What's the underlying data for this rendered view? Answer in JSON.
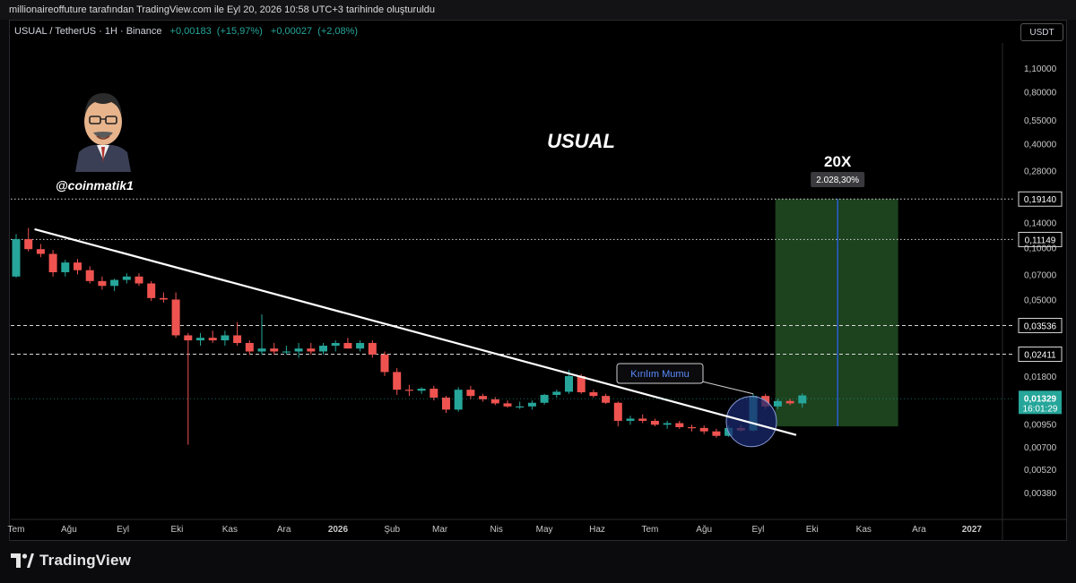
{
  "header": {
    "attribution": "millionaireoffuture tarafından TradingView.com ile Eyl 20, 2026 10:58 UTC+3 tarihinde oluşturuldu"
  },
  "symbol_bar": {
    "title": "USUAL / TetherUS · 1H · Binance",
    "change_abs": "+0,00183",
    "change_pct": "(+15,97%)",
    "change2_abs": "+0,00027",
    "change2_pct": "(+2,08%)"
  },
  "currency_button": "USDT",
  "author": {
    "handle": "@coinmatik1"
  },
  "branding": {
    "logo_text": "TradingView"
  },
  "colors": {
    "up": "#26a69a",
    "down": "#ef5350",
    "target_box": "#1e4620",
    "trendline": "#ffffff",
    "circle": "#1a2a6e",
    "label_blue": "#2962ff"
  },
  "chart_data": {
    "type": "candlestick",
    "title": "USUAL",
    "y_scale": "log",
    "ylim": [
      0.0033,
      1.25
    ],
    "y_ticks": [
      "1,10000",
      "0,80000",
      "0,55000",
      "0,40000",
      "0,28000",
      "0,14000",
      "0,10000",
      "0,07000",
      "0,05000",
      "0,01800",
      "0,00950",
      "0,00700",
      "0,00520",
      "0,00380"
    ],
    "y_tick_values": [
      1.1,
      0.8,
      0.55,
      0.4,
      0.28,
      0.14,
      0.1,
      0.07,
      0.05,
      0.018,
      0.0095,
      0.007,
      0.0052,
      0.0038
    ],
    "x_ticks": [
      "Tem",
      "Ağu",
      "Eyl",
      "Eki",
      "Kas",
      "Ara",
      "2026",
      "Şub",
      "Mar",
      "Nis",
      "May",
      "Haz",
      "Tem",
      "Ağu",
      "Eyl",
      "Eki",
      "Kas",
      "Ara",
      "2027"
    ],
    "x_tick_weeks": [
      0,
      4.3,
      8.7,
      13.1,
      17.4,
      21.8,
      26.2,
      30.6,
      34.5,
      39.1,
      43.0,
      47.3,
      51.6,
      56.0,
      60.4,
      64.8,
      69.0,
      73.5,
      77.8
    ],
    "price_levels": [
      {
        "label": "0,19140",
        "value": 0.1914,
        "style": "dotted"
      },
      {
        "label": "0,11149",
        "value": 0.11149,
        "style": "dotted"
      },
      {
        "label": "0,03536",
        "value": 0.03536,
        "style": "dashed"
      },
      {
        "label": "0,02411",
        "value": 0.02411,
        "style": "dashed"
      }
    ],
    "current_price": {
      "label": "0,01329",
      "timer": "16:01:29",
      "value": 0.01329
    },
    "annotations": {
      "multiplier": "20X",
      "target_pct": "2.028,30%",
      "breakout_label": "Kırılım Mumu"
    },
    "target_box": {
      "x_start_week": 61.8,
      "x_end_week": 71.8,
      "y_low": 0.0092,
      "y_high": 0.1914
    },
    "trendline": {
      "start": {
        "week": 1.5,
        "value": 0.128
      },
      "end": {
        "week": 63.5,
        "value": 0.0082
      }
    },
    "candles": [
      {
        "o": 0.068,
        "h": 0.12,
        "l": 0.067,
        "c": 0.112
      },
      {
        "o": 0.112,
        "h": 0.13,
        "l": 0.095,
        "c": 0.098
      },
      {
        "o": 0.098,
        "h": 0.105,
        "l": 0.088,
        "c": 0.092
      },
      {
        "o": 0.092,
        "h": 0.097,
        "l": 0.068,
        "c": 0.072
      },
      {
        "o": 0.072,
        "h": 0.085,
        "l": 0.068,
        "c": 0.082
      },
      {
        "o": 0.082,
        "h": 0.086,
        "l": 0.07,
        "c": 0.074
      },
      {
        "o": 0.074,
        "h": 0.078,
        "l": 0.062,
        "c": 0.064
      },
      {
        "o": 0.064,
        "h": 0.068,
        "l": 0.057,
        "c": 0.06
      },
      {
        "o": 0.06,
        "h": 0.066,
        "l": 0.056,
        "c": 0.065
      },
      {
        "o": 0.065,
        "h": 0.071,
        "l": 0.062,
        "c": 0.068
      },
      {
        "o": 0.068,
        "h": 0.071,
        "l": 0.06,
        "c": 0.062
      },
      {
        "o": 0.062,
        "h": 0.064,
        "l": 0.049,
        "c": 0.051
      },
      {
        "o": 0.051,
        "h": 0.055,
        "l": 0.048,
        "c": 0.05
      },
      {
        "o": 0.05,
        "h": 0.055,
        "l": 0.03,
        "c": 0.031
      },
      {
        "o": 0.031,
        "h": 0.032,
        "l": 0.0072,
        "c": 0.029
      },
      {
        "o": 0.029,
        "h": 0.032,
        "l": 0.027,
        "c": 0.03
      },
      {
        "o": 0.03,
        "h": 0.033,
        "l": 0.028,
        "c": 0.029
      },
      {
        "o": 0.029,
        "h": 0.033,
        "l": 0.027,
        "c": 0.031
      },
      {
        "o": 0.031,
        "h": 0.037,
        "l": 0.027,
        "c": 0.028
      },
      {
        "o": 0.028,
        "h": 0.029,
        "l": 0.024,
        "c": 0.025
      },
      {
        "o": 0.025,
        "h": 0.041,
        "l": 0.024,
        "c": 0.026
      },
      {
        "o": 0.026,
        "h": 0.028,
        "l": 0.024,
        "c": 0.025
      },
      {
        "o": 0.025,
        "h": 0.027,
        "l": 0.024,
        "c": 0.025
      },
      {
        "o": 0.025,
        "h": 0.028,
        "l": 0.023,
        "c": 0.026
      },
      {
        "o": 0.026,
        "h": 0.028,
        "l": 0.024,
        "c": 0.025
      },
      {
        "o": 0.025,
        "h": 0.028,
        "l": 0.024,
        "c": 0.027
      },
      {
        "o": 0.027,
        "h": 0.029,
        "l": 0.025,
        "c": 0.028
      },
      {
        "o": 0.028,
        "h": 0.03,
        "l": 0.026,
        "c": 0.026
      },
      {
        "o": 0.026,
        "h": 0.029,
        "l": 0.025,
        "c": 0.028
      },
      {
        "o": 0.028,
        "h": 0.029,
        "l": 0.023,
        "c": 0.024
      },
      {
        "o": 0.024,
        "h": 0.025,
        "l": 0.018,
        "c": 0.019
      },
      {
        "o": 0.019,
        "h": 0.02,
        "l": 0.014,
        "c": 0.015
      },
      {
        "o": 0.015,
        "h": 0.016,
        "l": 0.0138,
        "c": 0.0148
      },
      {
        "o": 0.0148,
        "h": 0.0155,
        "l": 0.0142,
        "c": 0.0152
      },
      {
        "o": 0.0152,
        "h": 0.0158,
        "l": 0.013,
        "c": 0.0135
      },
      {
        "o": 0.0135,
        "h": 0.0138,
        "l": 0.011,
        "c": 0.0115
      },
      {
        "o": 0.0115,
        "h": 0.0155,
        "l": 0.0112,
        "c": 0.015
      },
      {
        "o": 0.015,
        "h": 0.0158,
        "l": 0.0132,
        "c": 0.0138
      },
      {
        "o": 0.0138,
        "h": 0.0142,
        "l": 0.0128,
        "c": 0.0132
      },
      {
        "o": 0.0132,
        "h": 0.0136,
        "l": 0.0122,
        "c": 0.0125
      },
      {
        "o": 0.0125,
        "h": 0.013,
        "l": 0.0118,
        "c": 0.012
      },
      {
        "o": 0.012,
        "h": 0.0128,
        "l": 0.0116,
        "c": 0.012
      },
      {
        "o": 0.012,
        "h": 0.013,
        "l": 0.0115,
        "c": 0.0126
      },
      {
        "o": 0.0126,
        "h": 0.0142,
        "l": 0.0123,
        "c": 0.014
      },
      {
        "o": 0.014,
        "h": 0.015,
        "l": 0.0135,
        "c": 0.0146
      },
      {
        "o": 0.0146,
        "h": 0.0195,
        "l": 0.0142,
        "c": 0.018
      },
      {
        "o": 0.018,
        "h": 0.0185,
        "l": 0.0142,
        "c": 0.0145
      },
      {
        "o": 0.0145,
        "h": 0.015,
        "l": 0.0135,
        "c": 0.0138
      },
      {
        "o": 0.0138,
        "h": 0.0142,
        "l": 0.0124,
        "c": 0.0126
      },
      {
        "o": 0.0126,
        "h": 0.0128,
        "l": 0.0092,
        "c": 0.0099
      },
      {
        "o": 0.0099,
        "h": 0.0106,
        "l": 0.0094,
        "c": 0.0102
      },
      {
        "o": 0.0102,
        "h": 0.0108,
        "l": 0.0096,
        "c": 0.0099
      },
      {
        "o": 0.0099,
        "h": 0.0102,
        "l": 0.0092,
        "c": 0.0094
      },
      {
        "o": 0.0094,
        "h": 0.0099,
        "l": 0.0089,
        "c": 0.0096
      },
      {
        "o": 0.0096,
        "h": 0.0099,
        "l": 0.0089,
        "c": 0.0091
      },
      {
        "o": 0.0091,
        "h": 0.0094,
        "l": 0.0086,
        "c": 0.009
      },
      {
        "o": 0.009,
        "h": 0.0093,
        "l": 0.0083,
        "c": 0.0086
      },
      {
        "o": 0.0086,
        "h": 0.0089,
        "l": 0.0079,
        "c": 0.0081
      },
      {
        "o": 0.0081,
        "h": 0.0093,
        "l": 0.008,
        "c": 0.009
      },
      {
        "o": 0.009,
        "h": 0.0094,
        "l": 0.0086,
        "c": 0.0087
      },
      {
        "o": 0.0087,
        "h": 0.0142,
        "l": 0.0086,
        "c": 0.0138
      },
      {
        "o": 0.0138,
        "h": 0.0142,
        "l": 0.0116,
        "c": 0.012
      },
      {
        "o": 0.012,
        "h": 0.0133,
        "l": 0.0116,
        "c": 0.0129
      },
      {
        "o": 0.0129,
        "h": 0.0133,
        "l": 0.0122,
        "c": 0.0125
      },
      {
        "o": 0.0125,
        "h": 0.0143,
        "l": 0.0118,
        "c": 0.0139
      }
    ]
  }
}
